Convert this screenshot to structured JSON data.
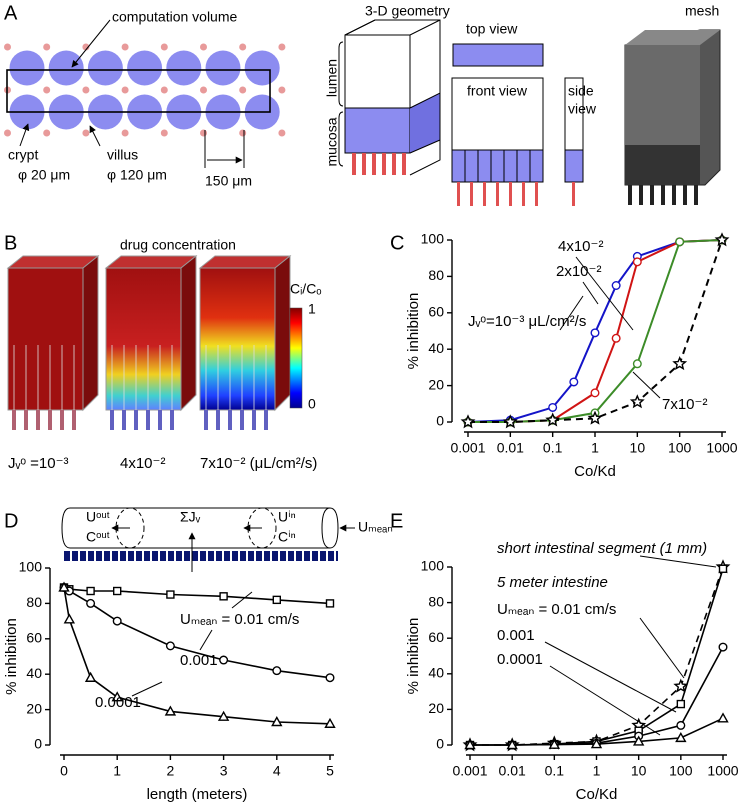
{
  "panel_labels": [
    "A",
    "B",
    "C",
    "D",
    "E"
  ],
  "panel_a": {
    "computation_volume": "computation volume",
    "crypt": "crypt",
    "crypt_size": "φ 20 μm",
    "villus": "villus",
    "villus_size": "φ 120 μm",
    "spacing": "150 μm",
    "geometry_title": "3-D geometry",
    "top_view": "top view",
    "front_view": "front view",
    "side_view": "side",
    "side_view_2": "view",
    "lumen": "lumen",
    "mucosa": "mucosa",
    "mesh": "mesh"
  },
  "panel_b": {
    "title": "drug concentration",
    "colorbar_label": "Cᵢ/Cₒ",
    "colorbar_max": 1,
    "colorbar_min": 0,
    "labels": [
      "Jᵥᵒ =10⁻³",
      "4x10⁻²",
      "7x10⁻² (μL/cm²/s)"
    ]
  },
  "panel_d_schematic": {
    "u_out": "Uᵒᵘᵗ",
    "c_out": "Cᵒᵘᵗ",
    "sum_jv": "ΣJᵥ",
    "u_in": "Uⁱⁿ",
    "c_in": "Cⁱⁿ",
    "u_mean": "Uₘₑₐₙ"
  },
  "chart_data": [
    {
      "type": "line",
      "log_x": true,
      "xlabel": "Co/Kd",
      "ylabel": "% inhibition",
      "xlim": [
        0.001,
        1000
      ],
      "xticks": [
        0.001,
        0.01,
        0.1,
        1,
        10,
        100,
        1000
      ],
      "ylim": [
        0,
        100
      ],
      "yticks": [
        0,
        20,
        40,
        60,
        80,
        100
      ],
      "series": [
        {
          "name": "Jᵥᵒ=10⁻³ μL/cm²/s",
          "color": "#1414c8",
          "marker": "circle",
          "dashed": false,
          "x": [
            0.001,
            0.01,
            0.1,
            0.316,
            1,
            3.16,
            10,
            100,
            1000
          ],
          "values": [
            0,
            1,
            8,
            22,
            49,
            75,
            91,
            99,
            100
          ]
        },
        {
          "name": "2x10⁻²",
          "color": "#d01414",
          "marker": "circle",
          "dashed": false,
          "x": [
            0.001,
            0.01,
            0.1,
            1,
            3.16,
            10,
            100,
            1000
          ],
          "values": [
            0,
            0,
            1,
            16,
            46,
            88,
            99,
            100
          ]
        },
        {
          "name": "4x10⁻²",
          "color": "#3c8c28",
          "marker": "circle",
          "dashed": false,
          "x": [
            0.001,
            0.01,
            0.1,
            1,
            10,
            100,
            1000
          ],
          "values": [
            0,
            0,
            1,
            5,
            32,
            99,
            100
          ]
        },
        {
          "name": "7x10⁻²",
          "color": "#000000",
          "marker": "star",
          "dashed": true,
          "x": [
            0.001,
            0.01,
            0.1,
            1,
            10,
            100,
            1000
          ],
          "values": [
            0,
            0,
            1,
            2,
            11,
            32,
            100
          ]
        }
      ]
    },
    {
      "type": "line",
      "log_x": false,
      "xlabel": "length (meters)",
      "ylabel": "% inhibition",
      "xlim": [
        0,
        5
      ],
      "xticks": [
        0,
        1,
        2,
        3,
        4,
        5
      ],
      "ylim": [
        0,
        100
      ],
      "yticks": [
        0,
        20,
        40,
        60,
        80,
        100
      ],
      "series": [
        {
          "name": "Uₘₑₐₙ = 0.01 cm/s",
          "color": "#000000",
          "marker": "square",
          "dashed": false,
          "x": [
            0,
            0.1,
            0.5,
            1,
            2,
            3,
            4,
            5
          ],
          "values": [
            89,
            88,
            87,
            87,
            85,
            84,
            82,
            80
          ]
        },
        {
          "name": "0.001",
          "color": "#000000",
          "marker": "circle",
          "dashed": false,
          "x": [
            0,
            0.1,
            0.5,
            1,
            2,
            3,
            4,
            5
          ],
          "values": [
            89,
            87,
            80,
            70,
            56,
            48,
            42,
            38
          ]
        },
        {
          "name": "0.0001",
          "color": "#000000",
          "marker": "triangle",
          "dashed": false,
          "x": [
            0,
            0.1,
            0.5,
            1,
            2,
            3,
            4,
            5
          ],
          "values": [
            89,
            71,
            38,
            27,
            19,
            16,
            13,
            12
          ]
        }
      ]
    },
    {
      "type": "line",
      "log_x": true,
      "xlabel": "Co/Kd",
      "ylabel": "% inhibition",
      "xlim": [
        0.001,
        1000
      ],
      "xticks": [
        0.001,
        0.01,
        0.1,
        1,
        10,
        100,
        1000
      ],
      "ylim": [
        0,
        100
      ],
      "yticks": [
        0,
        20,
        40,
        60,
        80,
        100
      ],
      "annotations": [
        "5 meter intestine"
      ],
      "series": [
        {
          "name": "short intestinal segment (1 mm)",
          "color": "#000000",
          "marker": "star",
          "dashed": true,
          "x": [
            0.001,
            0.01,
            0.1,
            1,
            10,
            100,
            1000
          ],
          "values": [
            0,
            0,
            1,
            2,
            11,
            33,
            100
          ]
        },
        {
          "name": "Uₘₑₐₙ = 0.01 cm/s",
          "color": "#000000",
          "marker": "square",
          "dashed": false,
          "x": [
            0.001,
            0.01,
            0.1,
            1,
            10,
            100,
            1000
          ],
          "values": [
            0,
            0,
            0.5,
            2,
            8,
            23,
            99
          ]
        },
        {
          "name": "0.001",
          "color": "#000000",
          "marker": "circle",
          "dashed": false,
          "x": [
            0.001,
            0.01,
            0.1,
            1,
            10,
            100,
            1000
          ],
          "values": [
            0,
            0,
            0.3,
            1,
            5,
            11,
            55
          ]
        },
        {
          "name": "0.0001",
          "color": "#000000",
          "marker": "triangle",
          "dashed": false,
          "x": [
            0.001,
            0.01,
            0.1,
            1,
            10,
            100,
            1000
          ],
          "values": [
            0,
            0,
            0.2,
            0.5,
            2,
            4,
            15
          ]
        }
      ]
    }
  ]
}
